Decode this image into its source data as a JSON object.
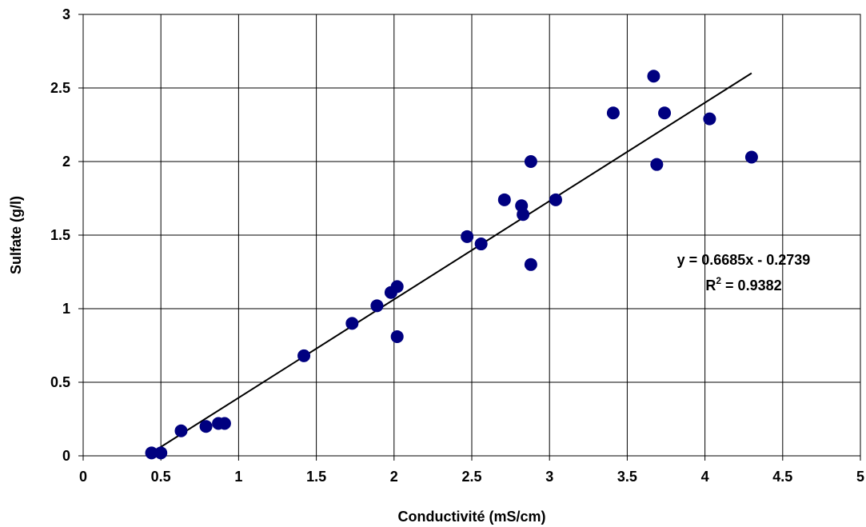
{
  "chart_data": {
    "type": "scatter",
    "xlabel": "Conductivité (mS/cm)",
    "ylabel": "Sulfate (g/l)",
    "xlim": [
      0,
      5
    ],
    "ylim": [
      0,
      3
    ],
    "x_ticks": [
      "0",
      "0.5",
      "1",
      "1.5",
      "2",
      "2.5",
      "3",
      "3.5",
      "4",
      "4.5",
      "5"
    ],
    "y_ticks": [
      "0",
      "0.5",
      "1",
      "1.5",
      "2",
      "2.5",
      "3"
    ],
    "x_tick_values": [
      0,
      0.5,
      1,
      1.5,
      2,
      2.5,
      3,
      3.5,
      4,
      4.5,
      5
    ],
    "y_tick_values": [
      0,
      0.5,
      1,
      1.5,
      2,
      2.5,
      3
    ],
    "grid": true,
    "marker_color": "#000080",
    "line_color": "#000000",
    "points": [
      {
        "x": 0.44,
        "y": 0.02
      },
      {
        "x": 0.5,
        "y": 0.02
      },
      {
        "x": 0.63,
        "y": 0.17
      },
      {
        "x": 0.79,
        "y": 0.2
      },
      {
        "x": 0.87,
        "y": 0.22
      },
      {
        "x": 0.91,
        "y": 0.22
      },
      {
        "x": 1.42,
        "y": 0.68
      },
      {
        "x": 1.73,
        "y": 0.9
      },
      {
        "x": 1.89,
        "y": 1.02
      },
      {
        "x": 1.98,
        "y": 1.11
      },
      {
        "x": 2.02,
        "y": 1.15
      },
      {
        "x": 2.02,
        "y": 0.81
      },
      {
        "x": 2.47,
        "y": 1.49
      },
      {
        "x": 2.56,
        "y": 1.44
      },
      {
        "x": 2.71,
        "y": 1.74
      },
      {
        "x": 2.82,
        "y": 1.7
      },
      {
        "x": 2.83,
        "y": 1.64
      },
      {
        "x": 2.88,
        "y": 2.0
      },
      {
        "x": 2.88,
        "y": 1.3
      },
      {
        "x": 3.04,
        "y": 1.74
      },
      {
        "x": 3.41,
        "y": 2.33
      },
      {
        "x": 3.67,
        "y": 2.58
      },
      {
        "x": 3.69,
        "y": 1.98
      },
      {
        "x": 3.74,
        "y": 2.33
      },
      {
        "x": 4.03,
        "y": 2.29
      },
      {
        "x": 4.3,
        "y": 2.03
      }
    ],
    "trendline": {
      "x_start": 0.44,
      "x_end": 4.3,
      "slope": 0.6685,
      "intercept": -0.2739
    },
    "annotation": {
      "equation": "y = 0.6685x - 0.2739",
      "r2_prefix": "R",
      "r2_sup": "2",
      "r2_suffix": " = 0.9382"
    }
  }
}
